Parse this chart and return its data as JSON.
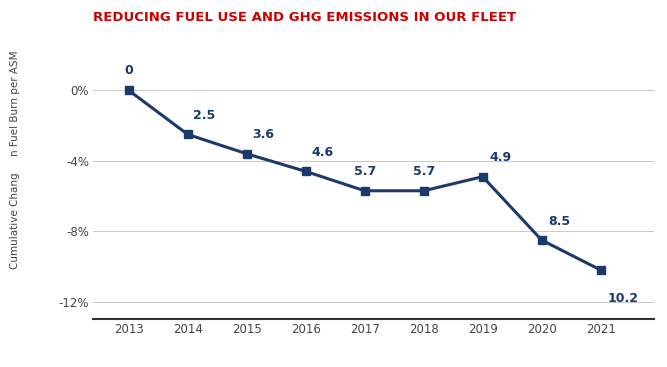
{
  "title": "REDUCING FUEL USE AND GHG EMISSIONS IN OUR FLEET",
  "title_color": "#cc0000",
  "title_fontsize": 9.5,
  "years": [
    2013,
    2014,
    2015,
    2016,
    2017,
    2018,
    2019,
    2020,
    2021
  ],
  "values": [
    0.0,
    -2.5,
    -3.6,
    -4.6,
    -5.7,
    -5.7,
    -4.9,
    -8.5,
    -10.2
  ],
  "labels": [
    "0",
    "2.5",
    "3.6",
    "4.6",
    "5.7",
    "5.7",
    "4.9",
    "8.5",
    "10.2"
  ],
  "line_color": "#1b3a6b",
  "marker_color": "#1b3a6b",
  "label_color": "#1b3a6b",
  "ylabel_top": "n Fuel Burn per ASM",
  "ylabel_bottom": "Cumulative Chang",
  "ylabel_fontsize": 7.5,
  "ylim": [
    -13.0,
    1.8
  ],
  "yticks": [
    0,
    -4,
    -8,
    -12
  ],
  "ytick_labels": [
    "0%",
    "-4%",
    "-8%",
    "-12%"
  ],
  "background_color": "#ffffff",
  "grid_color": "#c8c8c8",
  "label_fontsize": 9.0,
  "xlim_left": 2012.4,
  "xlim_right": 2021.9
}
